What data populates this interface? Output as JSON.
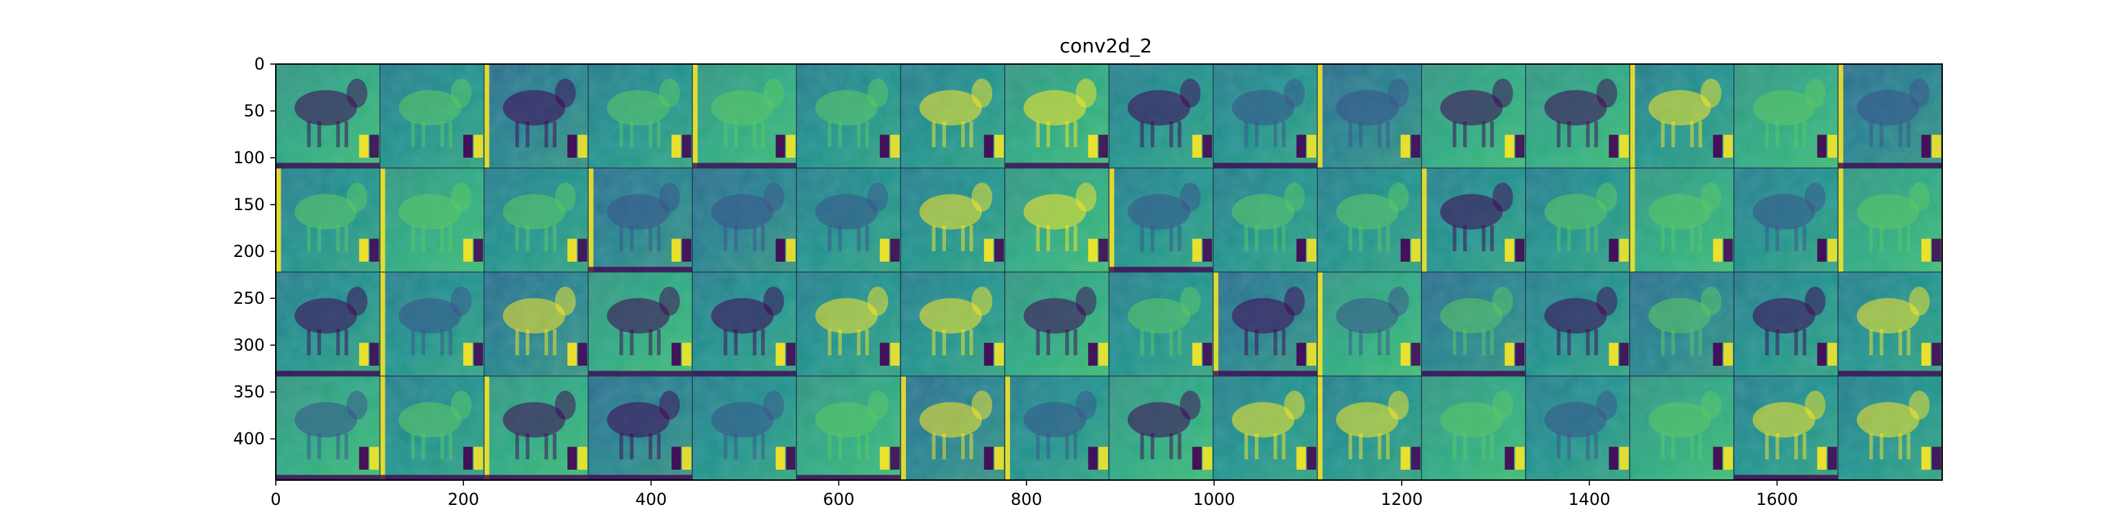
{
  "chart_data": {
    "type": "heatmap",
    "title": "conv2d_2",
    "xlabel": "",
    "ylabel": "",
    "xlim": [
      0,
      1776
    ],
    "ylim": [
      444,
      0
    ],
    "grid": false,
    "colormap": "viridis",
    "grid_layout": {
      "rows": 4,
      "cols": 16,
      "tile_size": 111
    },
    "x_ticks": [
      0,
      200,
      400,
      600,
      800,
      1000,
      1200,
      1400,
      1600
    ],
    "x_tick_labels": [
      "0",
      "200",
      "400",
      "600",
      "800",
      "1000",
      "1200",
      "1400",
      "1600"
    ],
    "y_ticks": [
      0,
      50,
      100,
      150,
      200,
      250,
      300,
      350,
      400
    ],
    "y_tick_labels": [
      "0",
      "50",
      "100",
      "150",
      "200",
      "250",
      "300",
      "350",
      "400"
    ]
  },
  "colors": {
    "viridis_dark": "#440154",
    "viridis_blue": "#3b528b",
    "viridis_teal": "#21918c",
    "viridis_green": "#5ec962",
    "viridis_yellow": "#fde725"
  }
}
